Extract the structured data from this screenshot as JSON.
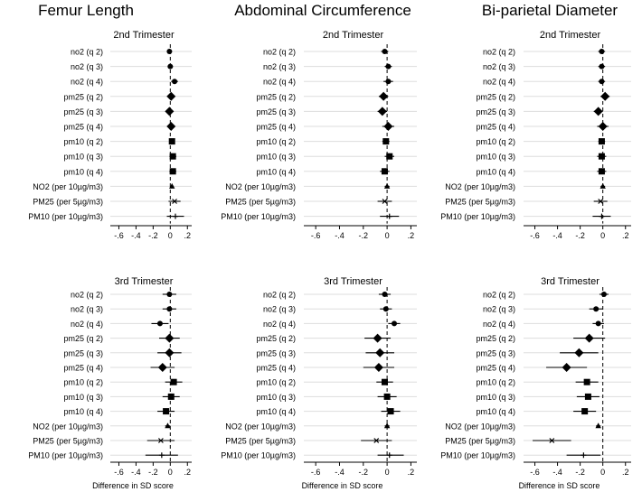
{
  "figure": {
    "xlabel": "Difference in SD score",
    "tick_values": [
      -0.6,
      -0.4,
      -0.2,
      0,
      0.2
    ],
    "tick_labels": [
      "-.6",
      "-.4",
      "-.2",
      "0",
      ".2"
    ],
    "marker_color": "#000000",
    "gridline_color": "#dddddd"
  },
  "chart_data": [
    {
      "type": "forest",
      "column_title": "Femur Length",
      "panel_title": "2nd Trimester",
      "xlim": [
        -0.7,
        0.25
      ],
      "reference_line": 0,
      "rows": [
        {
          "label": "no2 (q 2)",
          "estimate": -0.01,
          "ci": [
            -0.04,
            0.02
          ],
          "marker": "circle"
        },
        {
          "label": "no2 (q 3)",
          "estimate": 0.0,
          "ci": [
            -0.03,
            0.03
          ],
          "marker": "circle"
        },
        {
          "label": "no2 (q 4)",
          "estimate": 0.05,
          "ci": [
            0.01,
            0.09
          ],
          "marker": "circle"
        },
        {
          "label": "pm25 (q 2)",
          "estimate": 0.01,
          "ci": [
            -0.03,
            0.05
          ],
          "marker": "diamond"
        },
        {
          "label": "pm25 (q 3)",
          "estimate": -0.01,
          "ci": [
            -0.05,
            0.03
          ],
          "marker": "diamond"
        },
        {
          "label": "pm25 (q 4)",
          "estimate": 0.01,
          "ci": [
            -0.03,
            0.05
          ],
          "marker": "diamond"
        },
        {
          "label": "pm10 (q 2)",
          "estimate": 0.02,
          "ci": [
            -0.01,
            0.05
          ],
          "marker": "square"
        },
        {
          "label": "pm10 (q 3)",
          "estimate": 0.03,
          "ci": [
            -0.01,
            0.07
          ],
          "marker": "square"
        },
        {
          "label": "pm10 (q 4)",
          "estimate": 0.03,
          "ci": [
            -0.01,
            0.07
          ],
          "marker": "square"
        },
        {
          "label": "NO2 (per 10µg/m3)",
          "estimate": 0.02,
          "ci": [
            0.0,
            0.04
          ],
          "marker": "triangle"
        },
        {
          "label": "PM25 (per 5µg/m3)",
          "estimate": 0.05,
          "ci": [
            -0.02,
            0.12
          ],
          "marker": "x"
        },
        {
          "label": "PM10 (per 10µg/m3)",
          "estimate": 0.06,
          "ci": [
            -0.04,
            0.16
          ],
          "marker": "plus"
        }
      ]
    },
    {
      "type": "forest",
      "column_title": "Abdominal Circumference",
      "panel_title": "2nd Trimester",
      "xlim": [
        -0.7,
        0.25
      ],
      "reference_line": 0,
      "rows": [
        {
          "label": "no2 (q 2)",
          "estimate": -0.02,
          "ci": [
            -0.05,
            0.01
          ],
          "marker": "circle"
        },
        {
          "label": "no2 (q 3)",
          "estimate": 0.01,
          "ci": [
            -0.02,
            0.04
          ],
          "marker": "circle"
        },
        {
          "label": "no2 (q 4)",
          "estimate": 0.01,
          "ci": [
            -0.03,
            0.05
          ],
          "marker": "circle"
        },
        {
          "label": "pm25 (q 2)",
          "estimate": -0.03,
          "ci": [
            -0.07,
            0.01
          ],
          "marker": "diamond"
        },
        {
          "label": "pm25 (q 3)",
          "estimate": -0.04,
          "ci": [
            -0.08,
            0.0
          ],
          "marker": "diamond"
        },
        {
          "label": "pm25 (q 4)",
          "estimate": 0.01,
          "ci": [
            -0.04,
            0.06
          ],
          "marker": "diamond"
        },
        {
          "label": "pm10 (q 2)",
          "estimate": -0.01,
          "ci": [
            -0.04,
            0.02
          ],
          "marker": "square"
        },
        {
          "label": "pm10 (q 3)",
          "estimate": 0.02,
          "ci": [
            -0.02,
            0.06
          ],
          "marker": "square"
        },
        {
          "label": "pm10 (q 4)",
          "estimate": -0.02,
          "ci": [
            -0.06,
            0.02
          ],
          "marker": "square"
        },
        {
          "label": "NO2 (per 10µg/m3)",
          "estimate": 0.0,
          "ci": [
            -0.02,
            0.02
          ],
          "marker": "triangle"
        },
        {
          "label": "PM25 (per 5µg/m3)",
          "estimate": -0.02,
          "ci": [
            -0.08,
            0.04
          ],
          "marker": "x"
        },
        {
          "label": "PM10 (per 10µg/m3)",
          "estimate": 0.02,
          "ci": [
            -0.06,
            0.1
          ],
          "marker": "plus"
        }
      ]
    },
    {
      "type": "forest",
      "column_title": "Bi-parietal Diameter",
      "panel_title": "2nd Trimester",
      "xlim": [
        -0.7,
        0.25
      ],
      "reference_line": 0,
      "rows": [
        {
          "label": "no2 (q 2)",
          "estimate": -0.01,
          "ci": [
            -0.04,
            0.02
          ],
          "marker": "circle"
        },
        {
          "label": "no2 (q 3)",
          "estimate": -0.01,
          "ci": [
            -0.04,
            0.02
          ],
          "marker": "circle"
        },
        {
          "label": "no2 (q 4)",
          "estimate": -0.01,
          "ci": [
            -0.04,
            0.02
          ],
          "marker": "circle"
        },
        {
          "label": "pm25 (q 2)",
          "estimate": 0.02,
          "ci": [
            -0.02,
            0.06
          ],
          "marker": "diamond"
        },
        {
          "label": "pm25 (q 3)",
          "estimate": -0.04,
          "ci": [
            -0.08,
            0.0
          ],
          "marker": "diamond"
        },
        {
          "label": "pm25 (q 4)",
          "estimate": 0.0,
          "ci": [
            -0.05,
            0.05
          ],
          "marker": "diamond"
        },
        {
          "label": "pm10 (q 2)",
          "estimate": -0.01,
          "ci": [
            -0.04,
            0.02
          ],
          "marker": "square"
        },
        {
          "label": "pm10 (q 3)",
          "estimate": -0.01,
          "ci": [
            -0.05,
            0.03
          ],
          "marker": "square"
        },
        {
          "label": "pm10 (q 4)",
          "estimate": -0.01,
          "ci": [
            -0.05,
            0.03
          ],
          "marker": "square"
        },
        {
          "label": "NO2 (per 10µg/m3)",
          "estimate": 0.0,
          "ci": [
            -0.02,
            0.02
          ],
          "marker": "triangle"
        },
        {
          "label": "PM25 (per 5µg/m3)",
          "estimate": -0.02,
          "ci": [
            -0.08,
            0.04
          ],
          "marker": "x"
        },
        {
          "label": "PM10 (per 10µg/m3)",
          "estimate": -0.01,
          "ci": [
            -0.09,
            0.07
          ],
          "marker": "plus"
        }
      ]
    },
    {
      "type": "forest",
      "column_title": "Femur Length",
      "panel_title": "3rd Trimester",
      "xlim": [
        -0.7,
        0.25
      ],
      "reference_line": 0,
      "rows": [
        {
          "label": "no2 (q 2)",
          "estimate": -0.01,
          "ci": [
            -0.09,
            0.07
          ],
          "marker": "circle"
        },
        {
          "label": "no2 (q 3)",
          "estimate": -0.01,
          "ci": [
            -0.09,
            0.07
          ],
          "marker": "circle"
        },
        {
          "label": "no2 (q 4)",
          "estimate": -0.12,
          "ci": [
            -0.22,
            -0.02
          ],
          "marker": "circle"
        },
        {
          "label": "pm25 (q 2)",
          "estimate": -0.01,
          "ci": [
            -0.13,
            0.11
          ],
          "marker": "diamond"
        },
        {
          "label": "pm25 (q 3)",
          "estimate": -0.01,
          "ci": [
            -0.15,
            0.13
          ],
          "marker": "diamond"
        },
        {
          "label": "pm25 (q 4)",
          "estimate": -0.09,
          "ci": [
            -0.23,
            0.05
          ],
          "marker": "diamond"
        },
        {
          "label": "pm10 (q 2)",
          "estimate": 0.04,
          "ci": [
            -0.06,
            0.14
          ],
          "marker": "square"
        },
        {
          "label": "pm10 (q 3)",
          "estimate": 0.01,
          "ci": [
            -0.09,
            0.11
          ],
          "marker": "square"
        },
        {
          "label": "pm10 (q 4)",
          "estimate": -0.05,
          "ci": [
            -0.15,
            0.05
          ],
          "marker": "square"
        },
        {
          "label": "NO2 (per 10µg/m3)",
          "estimate": -0.03,
          "ci": [
            -0.06,
            0.0
          ],
          "marker": "triangle"
        },
        {
          "label": "PM25 (per 5µg/m3)",
          "estimate": -0.11,
          "ci": [
            -0.27,
            0.05
          ],
          "marker": "x"
        },
        {
          "label": "PM10 (per 10µg/m3)",
          "estimate": -0.1,
          "ci": [
            -0.29,
            0.09
          ],
          "marker": "plus"
        }
      ]
    },
    {
      "type": "forest",
      "column_title": "Abdominal Circumference",
      "panel_title": "3rd Trimester",
      "xlim": [
        -0.7,
        0.25
      ],
      "reference_line": 0,
      "rows": [
        {
          "label": "no2 (q 2)",
          "estimate": -0.02,
          "ci": [
            -0.07,
            0.03
          ],
          "marker": "circle"
        },
        {
          "label": "no2 (q 3)",
          "estimate": -0.01,
          "ci": [
            -0.06,
            0.04
          ],
          "marker": "circle"
        },
        {
          "label": "no2 (q 4)",
          "estimate": 0.06,
          "ci": [
            0.01,
            0.11
          ],
          "marker": "circle"
        },
        {
          "label": "pm25 (q 2)",
          "estimate": -0.08,
          "ci": [
            -0.19,
            0.03
          ],
          "marker": "diamond"
        },
        {
          "label": "pm25 (q 3)",
          "estimate": -0.06,
          "ci": [
            -0.18,
            0.06
          ],
          "marker": "diamond"
        },
        {
          "label": "pm25 (q 4)",
          "estimate": -0.07,
          "ci": [
            -0.2,
            0.06
          ],
          "marker": "diamond"
        },
        {
          "label": "pm10 (q 2)",
          "estimate": -0.02,
          "ci": [
            -0.09,
            0.05
          ],
          "marker": "square"
        },
        {
          "label": "pm10 (q 3)",
          "estimate": 0.0,
          "ci": [
            -0.08,
            0.08
          ],
          "marker": "square"
        },
        {
          "label": "pm10 (q 4)",
          "estimate": 0.03,
          "ci": [
            -0.05,
            0.11
          ],
          "marker": "square"
        },
        {
          "label": "NO2 (per 10µg/m3)",
          "estimate": 0.0,
          "ci": [
            -0.02,
            0.02
          ],
          "marker": "triangle"
        },
        {
          "label": "PM25 (per 5µg/m3)",
          "estimate": -0.09,
          "ci": [
            -0.22,
            0.04
          ],
          "marker": "x"
        },
        {
          "label": "PM10 (per 10µg/m3)",
          "estimate": 0.02,
          "ci": [
            -0.08,
            0.14
          ],
          "marker": "plus"
        }
      ]
    },
    {
      "type": "forest",
      "column_title": "Bi-parietal Diameter",
      "panel_title": "3rd Trimester",
      "xlim": [
        -0.7,
        0.25
      ],
      "reference_line": 0,
      "rows": [
        {
          "label": "no2 (q 2)",
          "estimate": 0.01,
          "ci": [
            -0.03,
            0.05
          ],
          "marker": "circle"
        },
        {
          "label": "no2 (q 3)",
          "estimate": -0.06,
          "ci": [
            -0.12,
            0.0
          ],
          "marker": "circle"
        },
        {
          "label": "no2 (q 4)",
          "estimate": -0.04,
          "ci": [
            -0.09,
            0.01
          ],
          "marker": "circle"
        },
        {
          "label": "pm25 (q 2)",
          "estimate": -0.12,
          "ci": [
            -0.26,
            0.02
          ],
          "marker": "diamond"
        },
        {
          "label": "pm25 (q 3)",
          "estimate": -0.21,
          "ci": [
            -0.38,
            -0.04
          ],
          "marker": "diamond"
        },
        {
          "label": "pm25 (q 4)",
          "estimate": -0.32,
          "ci": [
            -0.5,
            -0.14
          ],
          "marker": "diamond"
        },
        {
          "label": "pm10 (q 2)",
          "estimate": -0.14,
          "ci": [
            -0.24,
            -0.04
          ],
          "marker": "square"
        },
        {
          "label": "pm10 (q 3)",
          "estimate": -0.13,
          "ci": [
            -0.23,
            -0.03
          ],
          "marker": "square"
        },
        {
          "label": "pm10 (q 4)",
          "estimate": -0.16,
          "ci": [
            -0.26,
            -0.06
          ],
          "marker": "square"
        },
        {
          "label": "NO2 (per 10µg/m3)",
          "estimate": -0.04,
          "ci": [
            -0.06,
            -0.02
          ],
          "marker": "triangle"
        },
        {
          "label": "PM25 (per 5µg/m3)",
          "estimate": -0.45,
          "ci": [
            -0.62,
            -0.28
          ],
          "marker": "x"
        },
        {
          "label": "PM10 (per 10µg/m3)",
          "estimate": -0.17,
          "ci": [
            -0.32,
            -0.02
          ],
          "marker": "plus"
        }
      ]
    }
  ]
}
